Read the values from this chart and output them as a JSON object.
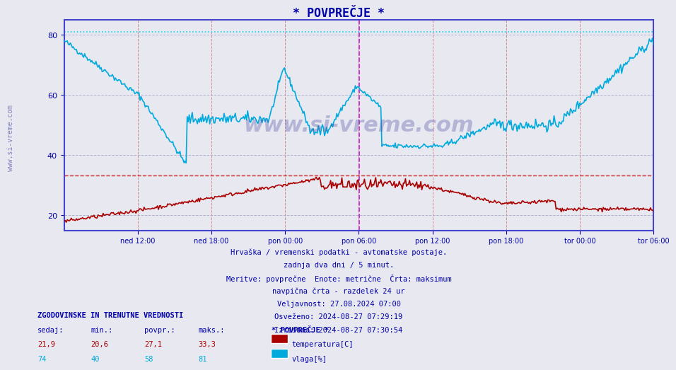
{
  "title": "* POVPREČJE *",
  "bg_color": "#e8e8f0",
  "plot_bg_color": "#e8e8f0",
  "x_tick_labels": [
    "ned 12:00",
    "ned 18:00",
    "pon 00:00",
    "pon 06:00",
    "pon 12:00",
    "pon 18:00",
    "tor 00:00",
    "tor 06:00"
  ],
  "y_ticks": [
    20,
    40,
    60,
    80
  ],
  "ylim": [
    15,
    85
  ],
  "xlim": [
    0,
    576
  ],
  "n_points": 576,
  "temp_color": "#aa0000",
  "humidity_color": "#00aadd",
  "temp_max_line_color": "#cc0000",
  "humidity_max_line_color": "#00ccee",
  "border_color": "#4444cc",
  "vgrid_color": "#cc6666",
  "hgrid_color": "#aaaacc",
  "vline_color": "#cc00cc",
  "watermark_color": "#5555aa",
  "text_color": "#0000aa",
  "info_lines": [
    "Hrvaška / vremenski podatki - avtomatske postaje.",
    "zadnja dva dni / 5 minut.",
    "Meritve: povprečne  Enote: metrične  Črta: maksimum",
    "navpična črta - razdelek 24 ur",
    "Veljavnost: 27.08.2024 07:00",
    "Osveženo: 2024-08-27 07:29:19",
    "Izrisano: 2024-08-27 07:30:54"
  ],
  "legend_title": "* POVPREČJE *",
  "legend_entries": [
    {
      "label": "temperatura[C]",
      "color": "#aa0000"
    },
    {
      "label": "vlaga[%]",
      "color": "#00aadd"
    }
  ],
  "stats_header": [
    "sedaj:",
    "min.:",
    "povpr.:",
    "maks.:"
  ],
  "stats_temp": [
    "21,9",
    "20,6",
    "27,1",
    "33,3"
  ],
  "stats_humidity": [
    "74",
    "40",
    "58",
    "81"
  ],
  "table_header": "ZGODOVINSKE IN TRENUTNE VREDNOSTI"
}
